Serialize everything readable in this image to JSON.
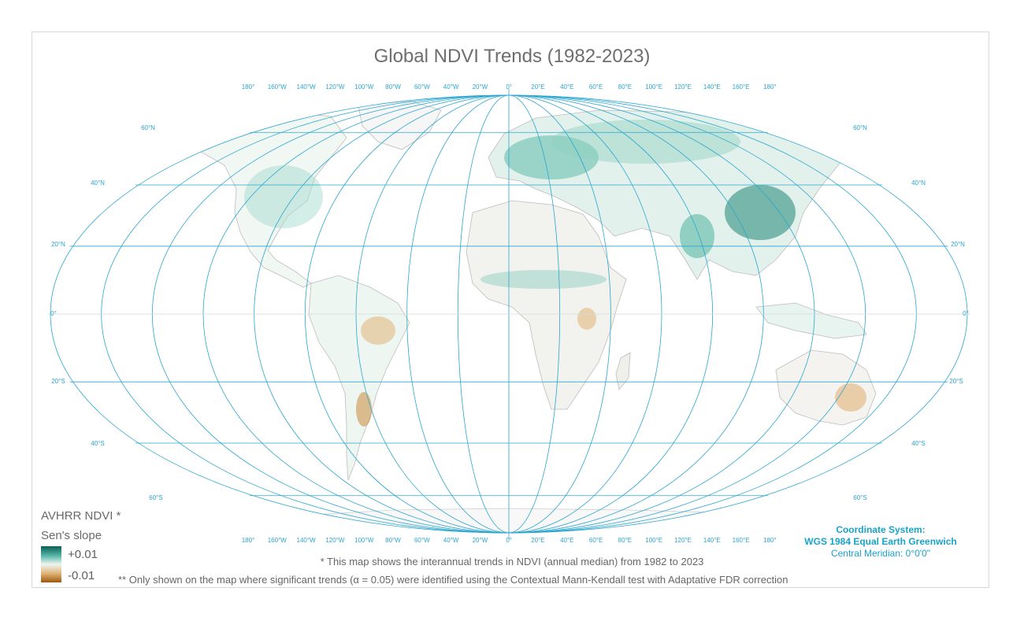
{
  "map": {
    "title": "Global NDVI Trends (1982-2023)",
    "projection": "WGS 1984 Equal Earth Greenwich",
    "lon_labels": [
      "180°",
      "160°W",
      "140°W",
      "120°W",
      "100°W",
      "80°W",
      "60°W",
      "40°W",
      "20°W",
      "0°",
      "20°E",
      "40°E",
      "60°E",
      "80°E",
      "100°E",
      "120°E",
      "140°E",
      "160°E",
      "180°"
    ],
    "lat_labels_left": [
      "60°N",
      "40°N",
      "20°N",
      "0°",
      "20°S",
      "40°S",
      "60°S"
    ],
    "lat_labels_right": [
      "60°N",
      "40°N",
      "20°N",
      "0°",
      "20°S",
      "40°S",
      "60°S"
    ],
    "colors": {
      "graticule": "#2aa6cf",
      "positive": "#0c5e55",
      "neutral": "#eef6f1",
      "negative": "#9c5a0e",
      "coast": "#bdbdbd"
    }
  },
  "legend": {
    "title": "AVHRR NDVI *",
    "subtitle": "Sen's slope",
    "max_label": "+0.01",
    "min_label": "-0.01"
  },
  "notes": {
    "note1": "* This map shows the interannual trends in NDVI (annual median) from 1982 to 2023",
    "note2": "** Only shown on the map where significant trends (α = 0.05) were identified using the Contextual Mann-Kendall test with Adaptative FDR correction"
  },
  "coordinate_system": {
    "heading": "Coordinate System:",
    "name": "WGS 1984 Equal Earth Greenwich",
    "meridian": "Central Meridian: 0°0'0\""
  }
}
